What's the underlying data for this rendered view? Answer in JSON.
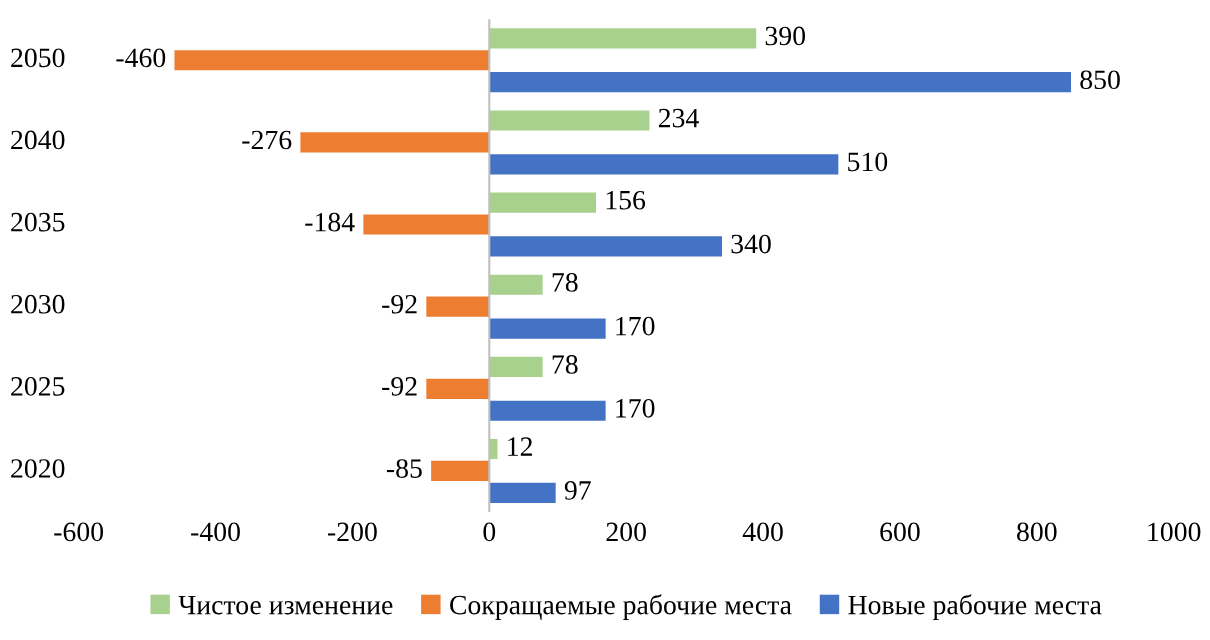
{
  "chart_data": {
    "type": "bar",
    "orientation": "horizontal",
    "categories": [
      "2050",
      "2040",
      "2035",
      "2030",
      "2025",
      "2020"
    ],
    "series": [
      {
        "name": "Чистое изменение",
        "color": "#a9d18e",
        "values": [
          390,
          234,
          156,
          78,
          78,
          12
        ]
      },
      {
        "name": "Сокращаемые рабочие места",
        "color": "#ed7d31",
        "values": [
          -460,
          -276,
          -184,
          -92,
          -92,
          -85
        ]
      },
      {
        "name": "Новые рабочие места",
        "color": "#4472c4",
        "values": [
          850,
          510,
          340,
          170,
          170,
          97
        ]
      }
    ],
    "xlim": [
      -600,
      1000
    ],
    "xticks": [
      -600,
      -400,
      -200,
      0,
      200,
      400,
      600,
      800,
      1000
    ],
    "ref_lines": [
      {
        "axis": "x",
        "value": 0,
        "color": "#bfbfbf"
      }
    ],
    "data_labels": true,
    "legend": "bottom",
    "grid": false
  }
}
